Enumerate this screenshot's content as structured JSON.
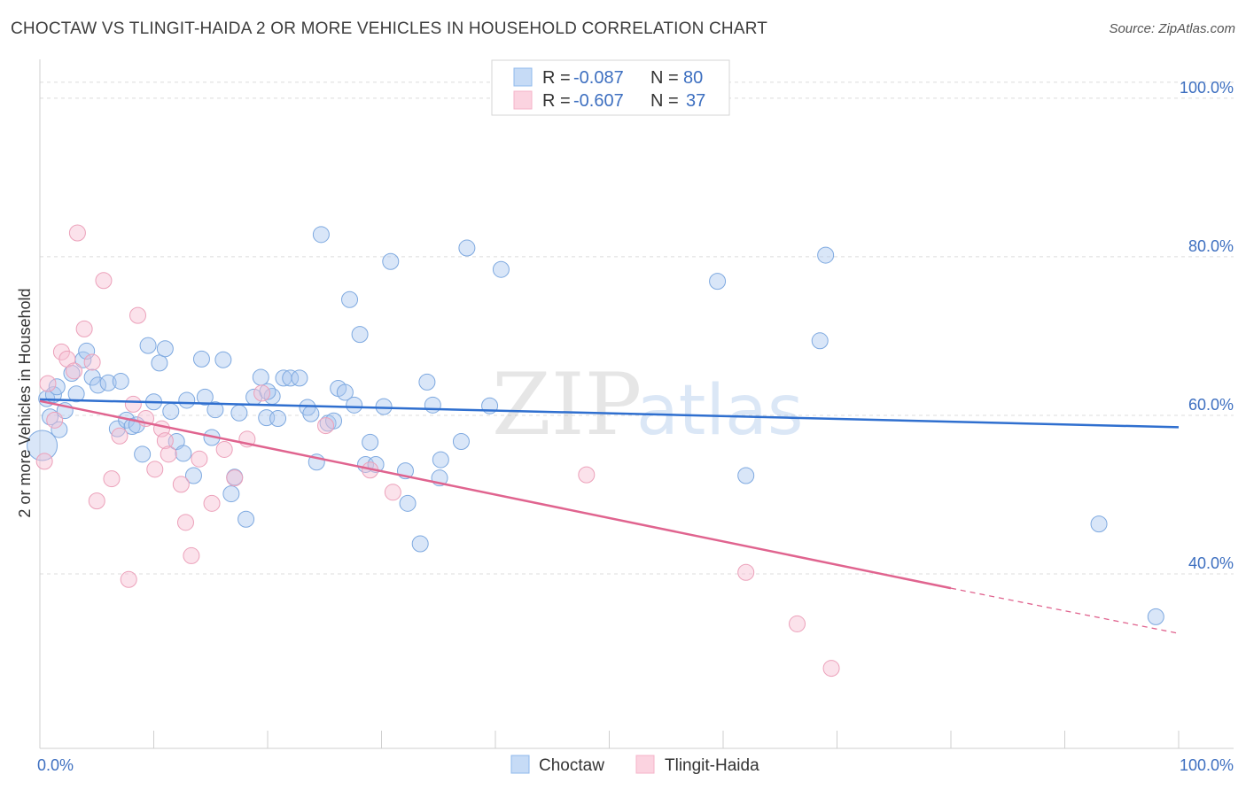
{
  "title": "CHOCTAW VS TLINGIT-HAIDA 2 OR MORE VEHICLES IN HOUSEHOLD CORRELATION CHART",
  "source": "Source: ZipAtlas.com",
  "watermark": {
    "zip": "ZIP",
    "atlas": "atlas"
  },
  "legend": {
    "r_label": "R =",
    "n_label": "N =",
    "series": [
      {
        "name": "Choctaw",
        "r": "-0.087",
        "n": "80",
        "color": "#8fb8ec",
        "line": "#2f6fcf"
      },
      {
        "name": "Tlingit-Haida",
        "r": "-0.607",
        "n": "37",
        "color": "#f4b3c8",
        "line": "#e0648f"
      }
    ]
  },
  "chart_data": {
    "type": "scatter",
    "title": "CHOCTAW VS TLINGIT-HAIDA 2 OR MORE VEHICLES IN HOUSEHOLD CORRELATION CHART",
    "xlabel": "",
    "ylabel": "2 or more Vehicles in Household",
    "xlim": [
      0,
      100
    ],
    "ylim": [
      18,
      104
    ],
    "x_ticks": [
      "0.0%",
      "100.0%"
    ],
    "y_ticks": [
      {
        "value": 100,
        "label": "100.0%"
      },
      {
        "value": 80,
        "label": "80.0%"
      },
      {
        "value": 60,
        "label": "60.0%"
      },
      {
        "value": 40,
        "label": "40.0%"
      }
    ],
    "legend_position": "top-center",
    "grid": true,
    "series": [
      {
        "name": "Choctaw",
        "trend": {
          "x0": 0,
          "y0": 62,
          "x1": 100,
          "y1": 58.5
        },
        "points": [
          [
            0.2,
            56.2
          ],
          [
            0.6,
            62.1
          ],
          [
            1.2,
            62.6
          ],
          [
            1.5,
            63.6
          ],
          [
            2.2,
            60.6
          ],
          [
            2.8,
            65.3
          ],
          [
            3.2,
            62.7
          ],
          [
            3.8,
            67.0
          ],
          [
            4.1,
            68.1
          ],
          [
            4.6,
            64.8
          ],
          [
            5.1,
            63.8
          ],
          [
            6.0,
            64.1
          ],
          [
            6.8,
            58.3
          ],
          [
            7.1,
            64.3
          ],
          [
            7.6,
            59.4
          ],
          [
            8.1,
            58.6
          ],
          [
            8.5,
            58.8
          ],
          [
            9.0,
            55.1
          ],
          [
            9.5,
            68.8
          ],
          [
            10.0,
            61.7
          ],
          [
            10.5,
            66.6
          ],
          [
            11.0,
            68.4
          ],
          [
            11.5,
            60.5
          ],
          [
            12.0,
            56.7
          ],
          [
            12.6,
            55.2
          ],
          [
            12.9,
            61.9
          ],
          [
            13.5,
            52.4
          ],
          [
            14.2,
            67.1
          ],
          [
            14.5,
            62.3
          ],
          [
            15.1,
            57.2
          ],
          [
            15.4,
            60.7
          ],
          [
            16.1,
            67.0
          ],
          [
            16.8,
            50.1
          ],
          [
            17.1,
            52.2
          ],
          [
            17.5,
            60.3
          ],
          [
            18.1,
            46.9
          ],
          [
            18.8,
            62.3
          ],
          [
            19.4,
            64.8
          ],
          [
            19.9,
            59.7
          ],
          [
            20.4,
            62.4
          ],
          [
            20.9,
            59.6
          ],
          [
            21.4,
            64.7
          ],
          [
            22.0,
            64.7
          ],
          [
            22.8,
            64.7
          ],
          [
            23.5,
            61.0
          ],
          [
            23.8,
            60.2
          ],
          [
            24.3,
            54.1
          ],
          [
            24.7,
            82.8
          ],
          [
            25.3,
            59.0
          ],
          [
            25.8,
            59.3
          ],
          [
            26.2,
            63.4
          ],
          [
            26.8,
            62.9
          ],
          [
            27.2,
            74.6
          ],
          [
            27.6,
            61.3
          ],
          [
            28.1,
            70.2
          ],
          [
            28.6,
            53.8
          ],
          [
            29.0,
            56.6
          ],
          [
            29.5,
            53.8
          ],
          [
            30.2,
            61.1
          ],
          [
            30.8,
            79.4
          ],
          [
            32.1,
            53.0
          ],
          [
            32.3,
            48.9
          ],
          [
            33.4,
            43.8
          ],
          [
            34.0,
            64.2
          ],
          [
            34.5,
            61.3
          ],
          [
            35.1,
            52.1
          ],
          [
            35.2,
            54.4
          ],
          [
            37.0,
            56.7
          ],
          [
            37.5,
            81.1
          ],
          [
            39.5,
            61.2
          ],
          [
            40.5,
            78.4
          ],
          [
            59.5,
            76.9
          ],
          [
            62.0,
            52.4
          ],
          [
            68.5,
            69.4
          ],
          [
            69.0,
            80.2
          ],
          [
            93.0,
            46.3
          ],
          [
            98.0,
            34.6
          ],
          [
            0.9,
            59.8
          ],
          [
            1.7,
            58.2
          ],
          [
            20.0,
            63.0
          ]
        ]
      },
      {
        "name": "Tlingit-Haida",
        "trend": {
          "x0": 0,
          "y0": 61.8,
          "x1": 80,
          "y1": 38.2,
          "dash_to_x": 100,
          "dash_to_y": 32.5
        },
        "points": [
          [
            0.4,
            54.2
          ],
          [
            0.7,
            64.0
          ],
          [
            1.3,
            59.4
          ],
          [
            1.9,
            68.0
          ],
          [
            2.4,
            67.1
          ],
          [
            3.0,
            65.6
          ],
          [
            3.3,
            83.0
          ],
          [
            3.9,
            70.9
          ],
          [
            4.6,
            66.7
          ],
          [
            5.0,
            49.2
          ],
          [
            5.6,
            77.0
          ],
          [
            6.3,
            52.0
          ],
          [
            7.0,
            57.4
          ],
          [
            7.8,
            39.3
          ],
          [
            8.2,
            61.4
          ],
          [
            8.6,
            72.6
          ],
          [
            9.3,
            59.6
          ],
          [
            10.1,
            53.2
          ],
          [
            10.7,
            58.3
          ],
          [
            11.0,
            56.8
          ],
          [
            11.3,
            55.1
          ],
          [
            12.4,
            51.3
          ],
          [
            12.8,
            46.5
          ],
          [
            13.3,
            42.3
          ],
          [
            14.0,
            54.5
          ],
          [
            15.1,
            48.9
          ],
          [
            16.2,
            55.7
          ],
          [
            17.1,
            52.1
          ],
          [
            18.2,
            57.0
          ],
          [
            19.5,
            62.8
          ],
          [
            25.1,
            58.7
          ],
          [
            29.0,
            53.1
          ],
          [
            31.0,
            50.3
          ],
          [
            48.0,
            52.5
          ],
          [
            62.0,
            40.2
          ],
          [
            66.5,
            33.7
          ],
          [
            69.5,
            28.1
          ]
        ]
      }
    ]
  }
}
